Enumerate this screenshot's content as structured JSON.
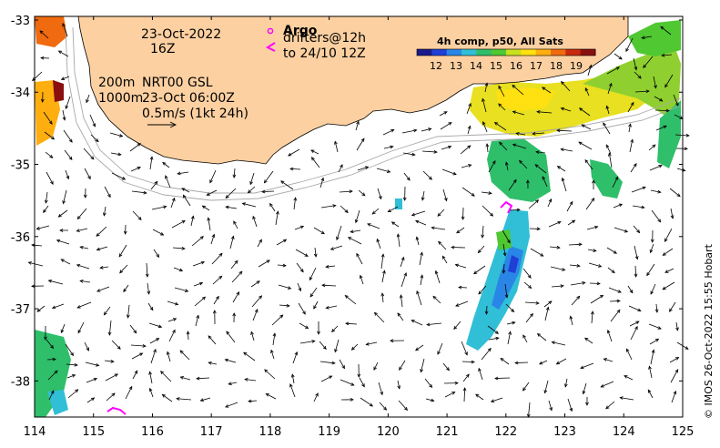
{
  "map": {
    "x_ticks": [
      "114",
      "115",
      "116",
      "117",
      "118",
      "119",
      "120",
      "121",
      "122",
      "123",
      "124",
      "125"
    ],
    "y_ticks": [
      "-33",
      "-34",
      "-35",
      "-36",
      "-37",
      "-38"
    ],
    "lon_range": [
      114,
      125
    ],
    "lat_range": [
      -38.5,
      -32.95
    ]
  },
  "annotations": {
    "date": "23-Oct-2022",
    "hour": "16Z",
    "argo_label": "Argo",
    "drifters_line1": "drifters@12h",
    "drifters_line2": "to 24/10 12Z",
    "depth_200": "200m",
    "depth_1000": "1000m",
    "model_line1": "NRT00 GSL",
    "model_line2": "23-Oct 06:00Z",
    "scale_label": "0.5m/s (1kt 24h)"
  },
  "colorbar": {
    "title": "4h comp, p50, All Sats",
    "ticks": [
      "12",
      "13",
      "14",
      "15",
      "16",
      "17",
      "18",
      "19"
    ],
    "colors": [
      "#1a1a8c",
      "#1f3fd6",
      "#2a86e6",
      "#30bfd6",
      "#2fbf6a",
      "#4fc832",
      "#c8e01e",
      "#ffe010",
      "#ffae10",
      "#f06a10",
      "#c82a10",
      "#8a1010"
    ]
  },
  "credit": "© IMOS 26-Oct-2022 15:55 Hobart",
  "colors": {
    "land": "#fcd0a1",
    "argo_marker": "#ff00ff",
    "drifter": "#ff00ff",
    "isobath": "#a8a8a8"
  }
}
